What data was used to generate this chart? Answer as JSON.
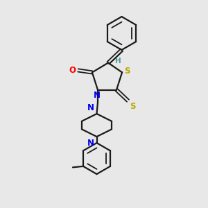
{
  "bg_color": "#e8e8e8",
  "bond_color": "#1a1a1a",
  "atom_colors": {
    "O": "#ff0000",
    "N": "#0000ee",
    "S": "#bbaa00",
    "H": "#4a9999",
    "C": "#1a1a1a"
  }
}
